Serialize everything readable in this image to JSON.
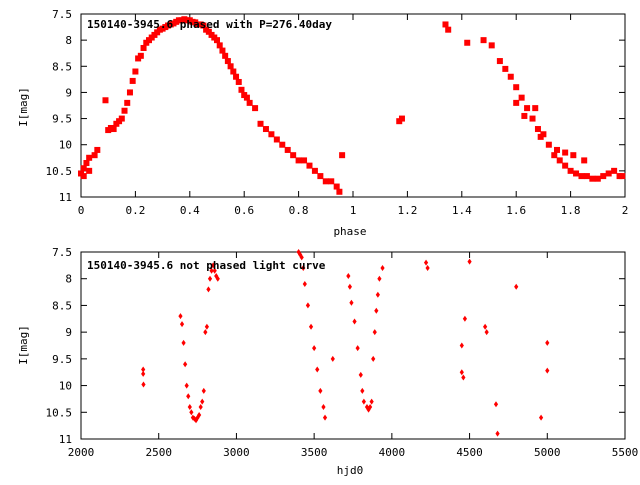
{
  "chart_data": [
    {
      "type": "scatter",
      "title": "150140-3945.6 phased with P=276.40day",
      "xlabel": "phase",
      "ylabel": "I[mag]",
      "xlim": [
        0,
        2
      ],
      "ylim": [
        11,
        7.5
      ],
      "y_reversed": true,
      "grid": false,
      "marker_color": "#ff0000",
      "marker": "square",
      "xticks": [
        "0",
        "0.2",
        "0.4",
        "0.6",
        "0.8",
        "1",
        "1.2",
        "1.4",
        "1.6",
        "1.8",
        "2"
      ],
      "yticks": [
        "7.5",
        "8",
        "8.5",
        "9",
        "9.5",
        "10",
        "10.5",
        "11"
      ],
      "points": [
        [
          0.0,
          10.55
        ],
        [
          0.01,
          10.45
        ],
        [
          0.01,
          10.6
        ],
        [
          0.02,
          10.35
        ],
        [
          0.03,
          10.5
        ],
        [
          0.03,
          10.25
        ],
        [
          0.05,
          10.2
        ],
        [
          0.06,
          10.1
        ],
        [
          0.09,
          9.15
        ],
        [
          0.1,
          9.72
        ],
        [
          0.11,
          9.68
        ],
        [
          0.12,
          9.7
        ],
        [
          0.13,
          9.6
        ],
        [
          0.14,
          9.55
        ],
        [
          0.15,
          9.5
        ],
        [
          0.16,
          9.35
        ],
        [
          0.17,
          9.2
        ],
        [
          0.18,
          9.0
        ],
        [
          0.19,
          8.78
        ],
        [
          0.2,
          8.6
        ],
        [
          0.21,
          8.35
        ],
        [
          0.22,
          8.3
        ],
        [
          0.23,
          8.15
        ],
        [
          0.24,
          8.05
        ],
        [
          0.25,
          8.0
        ],
        [
          0.26,
          7.95
        ],
        [
          0.27,
          7.9
        ],
        [
          0.28,
          7.85
        ],
        [
          0.29,
          7.8
        ],
        [
          0.3,
          7.78
        ],
        [
          0.31,
          7.75
        ],
        [
          0.32,
          7.72
        ],
        [
          0.33,
          7.7
        ],
        [
          0.34,
          7.68
        ],
        [
          0.35,
          7.65
        ],
        [
          0.36,
          7.62
        ],
        [
          0.37,
          7.62
        ],
        [
          0.38,
          7.6
        ],
        [
          0.39,
          7.62
        ],
        [
          0.4,
          7.62
        ],
        [
          0.41,
          7.65
        ],
        [
          0.42,
          7.66
        ],
        [
          0.43,
          7.7
        ],
        [
          0.44,
          7.7
        ],
        [
          0.45,
          7.72
        ],
        [
          0.46,
          7.8
        ],
        [
          0.47,
          7.84
        ],
        [
          0.48,
          7.9
        ],
        [
          0.49,
          7.95
        ],
        [
          0.5,
          8.0
        ],
        [
          0.51,
          8.1
        ],
        [
          0.52,
          8.2
        ],
        [
          0.53,
          8.3
        ],
        [
          0.54,
          8.4
        ],
        [
          0.55,
          8.5
        ],
        [
          0.56,
          8.6
        ],
        [
          0.57,
          8.7
        ],
        [
          0.58,
          8.8
        ],
        [
          0.59,
          8.95
        ],
        [
          0.6,
          9.05
        ],
        [
          0.61,
          9.1
        ],
        [
          0.62,
          9.2
        ],
        [
          0.64,
          9.3
        ],
        [
          0.66,
          9.6
        ],
        [
          0.68,
          9.7
        ],
        [
          0.7,
          9.8
        ],
        [
          0.72,
          9.9
        ],
        [
          0.74,
          10.0
        ],
        [
          0.76,
          10.1
        ],
        [
          0.78,
          10.2
        ],
        [
          0.8,
          10.3
        ],
        [
          0.82,
          10.3
        ],
        [
          0.84,
          10.4
        ],
        [
          0.86,
          10.5
        ],
        [
          0.88,
          10.6
        ],
        [
          0.9,
          10.7
        ],
        [
          0.92,
          10.7
        ],
        [
          0.94,
          10.8
        ],
        [
          0.95,
          10.9
        ],
        [
          0.96,
          10.2
        ],
        [
          1.17,
          9.55
        ],
        [
          1.18,
          9.5
        ],
        [
          1.34,
          7.7
        ],
        [
          1.35,
          7.8
        ],
        [
          1.42,
          8.05
        ],
        [
          1.48,
          8.0
        ],
        [
          1.51,
          8.1
        ],
        [
          1.54,
          8.4
        ],
        [
          1.56,
          8.55
        ],
        [
          1.58,
          8.7
        ],
        [
          1.6,
          8.9
        ],
        [
          1.62,
          9.1
        ],
        [
          1.64,
          9.3
        ],
        [
          1.66,
          9.5
        ],
        [
          1.68,
          9.7
        ],
        [
          1.7,
          9.8
        ],
        [
          1.72,
          10.0
        ],
        [
          1.74,
          10.2
        ],
        [
          1.76,
          10.3
        ],
        [
          1.78,
          10.4
        ],
        [
          1.8,
          10.5
        ],
        [
          1.82,
          10.55
        ],
        [
          1.84,
          10.6
        ],
        [
          1.86,
          10.6
        ],
        [
          1.88,
          10.65
        ],
        [
          1.9,
          10.65
        ],
        [
          1.92,
          10.6
        ],
        [
          1.94,
          10.55
        ],
        [
          1.96,
          10.5
        ],
        [
          1.98,
          10.6
        ],
        [
          1.99,
          10.6
        ],
        [
          1.75,
          10.1
        ],
        [
          1.78,
          10.15
        ],
        [
          1.81,
          10.2
        ],
        [
          1.85,
          10.3
        ],
        [
          1.6,
          9.2
        ],
        [
          1.63,
          9.45
        ],
        [
          1.67,
          9.3
        ],
        [
          1.69,
          9.85
        ]
      ]
    },
    {
      "type": "scatter",
      "title": "150140-3945.6 not phased light curve",
      "xlabel": "hjd0",
      "ylabel": "I[mag]",
      "xlim": [
        2000,
        5500
      ],
      "ylim": [
        11,
        7.5
      ],
      "y_reversed": true,
      "grid": false,
      "marker_color": "#ff0000",
      "marker": "diamond",
      "xticks": [
        "2000",
        "2500",
        "3000",
        "3500",
        "4000",
        "4500",
        "5000",
        "5500"
      ],
      "yticks": [
        "7.5",
        "8",
        "8.5",
        "9",
        "9.5",
        "10",
        "10.5",
        "11"
      ],
      "points": [
        [
          2400,
          9.7
        ],
        [
          2400,
          9.78
        ],
        [
          2402,
          9.98
        ],
        [
          2640,
          8.7
        ],
        [
          2650,
          8.85
        ],
        [
          2660,
          9.2
        ],
        [
          2670,
          9.6
        ],
        [
          2680,
          10.0
        ],
        [
          2690,
          10.2
        ],
        [
          2700,
          10.4
        ],
        [
          2710,
          10.5
        ],
        [
          2720,
          10.6
        ],
        [
          2730,
          10.62
        ],
        [
          2740,
          10.65
        ],
        [
          2750,
          10.6
        ],
        [
          2760,
          10.55
        ],
        [
          2770,
          10.4
        ],
        [
          2780,
          10.3
        ],
        [
          2790,
          10.1
        ],
        [
          2800,
          9.0
        ],
        [
          2810,
          8.9
        ],
        [
          2820,
          8.2
        ],
        [
          2830,
          8.0
        ],
        [
          2840,
          7.85
        ],
        [
          2850,
          7.75
        ],
        [
          2860,
          7.85
        ],
        [
          2870,
          7.95
        ],
        [
          2880,
          8.0
        ],
        [
          3400,
          7.5
        ],
        [
          3410,
          7.55
        ],
        [
          3420,
          7.6
        ],
        [
          3430,
          7.8
        ],
        [
          3440,
          8.1
        ],
        [
          3460,
          8.5
        ],
        [
          3480,
          8.9
        ],
        [
          3500,
          9.3
        ],
        [
          3520,
          9.7
        ],
        [
          3540,
          10.1
        ],
        [
          3560,
          10.4
        ],
        [
          3570,
          10.6
        ],
        [
          3620,
          9.5
        ],
        [
          3720,
          7.95
        ],
        [
          3730,
          8.15
        ],
        [
          3740,
          8.45
        ],
        [
          3760,
          8.8
        ],
        [
          3780,
          9.3
        ],
        [
          3800,
          9.8
        ],
        [
          3810,
          10.1
        ],
        [
          3820,
          10.3
        ],
        [
          3840,
          10.4
        ],
        [
          3850,
          10.45
        ],
        [
          3860,
          10.4
        ],
        [
          3870,
          10.3
        ],
        [
          3880,
          9.5
        ],
        [
          3890,
          9.0
        ],
        [
          3900,
          8.6
        ],
        [
          3910,
          8.3
        ],
        [
          3920,
          8.0
        ],
        [
          3940,
          7.8
        ],
        [
          4220,
          7.7
        ],
        [
          4230,
          7.8
        ],
        [
          4450,
          9.25
        ],
        [
          4450,
          9.75
        ],
        [
          4460,
          9.85
        ],
        [
          4470,
          8.75
        ],
        [
          4500,
          7.68
        ],
        [
          4600,
          8.9
        ],
        [
          4610,
          9.0
        ],
        [
          4670,
          10.35
        ],
        [
          4680,
          10.9
        ],
        [
          4800,
          8.15
        ],
        [
          4960,
          10.6
        ],
        [
          5000,
          9.2
        ],
        [
          5000,
          9.72
        ]
      ]
    }
  ]
}
